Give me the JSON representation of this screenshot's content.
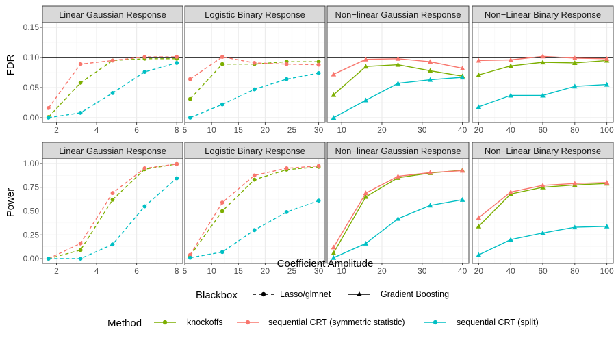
{
  "colors": {
    "knockoffs": "#7CAE00",
    "seqcrt_sym": "#F8766D",
    "seqcrt_split": "#00BFC4",
    "panel_border": "#333333",
    "strip_fill": "#D9D9D9",
    "grid_major": "#EBEBEB",
    "grid_minor": "#F5F5F5",
    "hline": "#000000"
  },
  "axis_labels": {
    "x": "Coefficient Amplitude",
    "y_top": "FDR",
    "y_bottom": "Power"
  },
  "legend": {
    "blackbox_title": "Blackbox",
    "blackbox_items": [
      {
        "key": "dashed",
        "label": "Lasso/glmnet"
      },
      {
        "key": "solid",
        "label": "Gradient Boosting"
      }
    ],
    "method_title": "Method",
    "method_items": [
      {
        "key": "knockoffs",
        "label": "knockoffs"
      },
      {
        "key": "seqcrt_sym",
        "label": "sequential CRT (symmetric statistic)"
      },
      {
        "key": "seqcrt_split",
        "label": "sequential CRT (split)"
      }
    ]
  },
  "chart_data": [
    {
      "type": "line",
      "row": "FDR",
      "title": "Linear Gaussian Response",
      "style": "dashed",
      "marker": "circle",
      "xlim": [
        1.3,
        8.3
      ],
      "xticks": [
        2,
        4,
        6,
        8
      ],
      "xtick_labels": [
        "2",
        "4",
        "6",
        "8"
      ],
      "ylim": [
        -0.008,
        0.158
      ],
      "yticks": [
        0,
        0.05,
        0.1,
        0.15
      ],
      "ytick_labels": [
        "0.00",
        "0.05",
        "0.10",
        "0.15"
      ],
      "hline": 0.1,
      "x": [
        1.6,
        3.2,
        4.8,
        6.4,
        8
      ],
      "series": [
        {
          "name": "knockoffs",
          "values": [
            0.001,
            0.058,
            0.095,
            0.098,
            0.098
          ]
        },
        {
          "name": "seqcrt_sym",
          "values": [
            0.016,
            0.089,
            0.095,
            0.101,
            0.101
          ]
        },
        {
          "name": "seqcrt_split",
          "values": [
            0.0,
            0.008,
            0.041,
            0.076,
            0.091
          ]
        }
      ]
    },
    {
      "type": "line",
      "row": "FDR",
      "title": "Logistic Binary Response",
      "style": "dashed",
      "marker": "circle",
      "xlim": [
        5,
        31.2
      ],
      "xticks": [
        5,
        10,
        15,
        20,
        25,
        30
      ],
      "xtick_labels": [
        "5",
        "10",
        "15",
        "20",
        "25",
        "30"
      ],
      "ylim": [
        -0.008,
        0.158
      ],
      "yticks": [
        0,
        0.05,
        0.1,
        0.15
      ],
      "ytick_labels": [
        "",
        "",
        "",
        ""
      ],
      "hline": 0.1,
      "x": [
        6,
        12,
        18,
        24,
        30
      ],
      "series": [
        {
          "name": "knockoffs",
          "values": [
            0.031,
            0.089,
            0.089,
            0.093,
            0.093
          ]
        },
        {
          "name": "seqcrt_sym",
          "values": [
            0.064,
            0.101,
            0.091,
            0.089,
            0.088
          ]
        },
        {
          "name": "seqcrt_split",
          "values": [
            0.0,
            0.022,
            0.047,
            0.064,
            0.074
          ]
        }
      ]
    },
    {
      "type": "line",
      "row": "FDR",
      "title": "Non−linear Gaussian Response",
      "style": "solid",
      "marker": "triangle",
      "xlim": [
        6.4,
        41.6
      ],
      "xticks": [
        10,
        20,
        30,
        40
      ],
      "xtick_labels": [
        "10",
        "20",
        "30",
        "40"
      ],
      "ylim": [
        -0.008,
        0.158
      ],
      "yticks": [
        0,
        0.05,
        0.1,
        0.15
      ],
      "ytick_labels": [
        "",
        "",
        "",
        ""
      ],
      "hline": 0.1,
      "x": [
        8,
        16,
        24,
        32,
        40
      ],
      "series": [
        {
          "name": "knockoffs",
          "values": [
            0.038,
            0.085,
            0.088,
            0.078,
            0.069
          ]
        },
        {
          "name": "seqcrt_sym",
          "values": [
            0.072,
            0.097,
            0.098,
            0.093,
            0.082
          ]
        },
        {
          "name": "seqcrt_split",
          "values": [
            0.0,
            0.029,
            0.057,
            0.063,
            0.067
          ]
        }
      ]
    },
    {
      "type": "line",
      "row": "FDR",
      "title": "Non−Linear Binary Response",
      "style": "solid",
      "marker": "triangle",
      "xlim": [
        16,
        104
      ],
      "xticks": [
        20,
        40,
        60,
        80,
        100
      ],
      "xtick_labels": [
        "20",
        "40",
        "60",
        "80",
        "100"
      ],
      "ylim": [
        -0.008,
        0.158
      ],
      "yticks": [
        0,
        0.05,
        0.1,
        0.15
      ],
      "ytick_labels": [
        "",
        "",
        "",
        ""
      ],
      "hline": 0.1,
      "x": [
        20,
        40,
        60,
        80,
        100
      ],
      "series": [
        {
          "name": "knockoffs",
          "values": [
            0.071,
            0.086,
            0.092,
            0.091,
            0.095
          ]
        },
        {
          "name": "seqcrt_sym",
          "values": [
            0.095,
            0.096,
            0.102,
            0.099,
            0.098
          ]
        },
        {
          "name": "seqcrt_split",
          "values": [
            0.018,
            0.037,
            0.037,
            0.052,
            0.055
          ]
        }
      ]
    },
    {
      "type": "line",
      "row": "Power",
      "title": "Linear Gaussian Response",
      "style": "dashed",
      "marker": "circle",
      "xlim": [
        1.3,
        8.3
      ],
      "xticks": [
        2,
        4,
        6,
        8
      ],
      "xtick_labels": [
        "2",
        "4",
        "6",
        "8"
      ],
      "ylim": [
        -0.05,
        1.05
      ],
      "yticks": [
        0,
        0.25,
        0.5,
        0.75,
        1.0
      ],
      "ytick_labels": [
        "0.00",
        "0.25",
        "0.50",
        "0.75",
        "1.00"
      ],
      "x": [
        1.6,
        3.2,
        4.8,
        6.4,
        8
      ],
      "series": [
        {
          "name": "knockoffs",
          "values": [
            0.0,
            0.09,
            0.62,
            0.94,
            0.995
          ]
        },
        {
          "name": "seqcrt_sym",
          "values": [
            0.0,
            0.16,
            0.69,
            0.95,
            0.995
          ]
        },
        {
          "name": "seqcrt_split",
          "values": [
            0.0,
            0.0,
            0.15,
            0.55,
            0.845
          ]
        }
      ]
    },
    {
      "type": "line",
      "row": "Power",
      "title": "Logistic Binary Response",
      "style": "dashed",
      "marker": "circle",
      "xlim": [
        5,
        31.2
      ],
      "xticks": [
        5,
        10,
        15,
        20,
        25,
        30
      ],
      "xtick_labels": [
        "5",
        "10",
        "15",
        "20",
        "25",
        "30"
      ],
      "ylim": [
        -0.05,
        1.05
      ],
      "yticks": [
        0,
        0.25,
        0.5,
        0.75,
        1.0
      ],
      "ytick_labels": [
        "",
        "",
        "",
        "",
        ""
      ],
      "x": [
        6,
        12,
        18,
        24,
        30
      ],
      "series": [
        {
          "name": "knockoffs",
          "values": [
            0.03,
            0.5,
            0.83,
            0.935,
            0.965
          ]
        },
        {
          "name": "seqcrt_sym",
          "values": [
            0.04,
            0.59,
            0.875,
            0.95,
            0.975
          ]
        },
        {
          "name": "seqcrt_split",
          "values": [
            0.01,
            0.07,
            0.3,
            0.49,
            0.61
          ]
        }
      ]
    },
    {
      "type": "line",
      "row": "Power",
      "title": "Non−linear Gaussian Response",
      "style": "solid",
      "marker": "triangle",
      "xlim": [
        6.4,
        41.6
      ],
      "xticks": [
        10,
        20,
        30,
        40
      ],
      "xtick_labels": [
        "10",
        "20",
        "30",
        "40"
      ],
      "ylim": [
        -0.05,
        1.05
      ],
      "yticks": [
        0,
        0.25,
        0.5,
        0.75,
        1.0
      ],
      "ytick_labels": [
        "",
        "",
        "",
        "",
        ""
      ],
      "x": [
        8,
        16,
        24,
        32,
        40
      ],
      "series": [
        {
          "name": "knockoffs",
          "values": [
            0.06,
            0.65,
            0.85,
            0.9,
            0.93
          ]
        },
        {
          "name": "seqcrt_sym",
          "values": [
            0.12,
            0.69,
            0.865,
            0.905,
            0.925
          ]
        },
        {
          "name": "seqcrt_split",
          "values": [
            0.01,
            0.16,
            0.42,
            0.56,
            0.62
          ]
        }
      ]
    },
    {
      "type": "line",
      "row": "Power",
      "title": "Non−Linear Binary Response",
      "style": "solid",
      "marker": "triangle",
      "xlim": [
        16,
        104
      ],
      "xticks": [
        20,
        40,
        60,
        80,
        100
      ],
      "xtick_labels": [
        "20",
        "40",
        "60",
        "80",
        "100"
      ],
      "ylim": [
        -0.05,
        1.05
      ],
      "yticks": [
        0,
        0.25,
        0.5,
        0.75,
        1.0
      ],
      "ytick_labels": [
        "",
        "",
        "",
        "",
        ""
      ],
      "x": [
        20,
        40,
        60,
        80,
        100
      ],
      "series": [
        {
          "name": "knockoffs",
          "values": [
            0.34,
            0.68,
            0.75,
            0.775,
            0.79
          ]
        },
        {
          "name": "seqcrt_sym",
          "values": [
            0.43,
            0.7,
            0.77,
            0.79,
            0.8
          ]
        },
        {
          "name": "seqcrt_split",
          "values": [
            0.04,
            0.2,
            0.27,
            0.33,
            0.34
          ]
        }
      ]
    }
  ]
}
